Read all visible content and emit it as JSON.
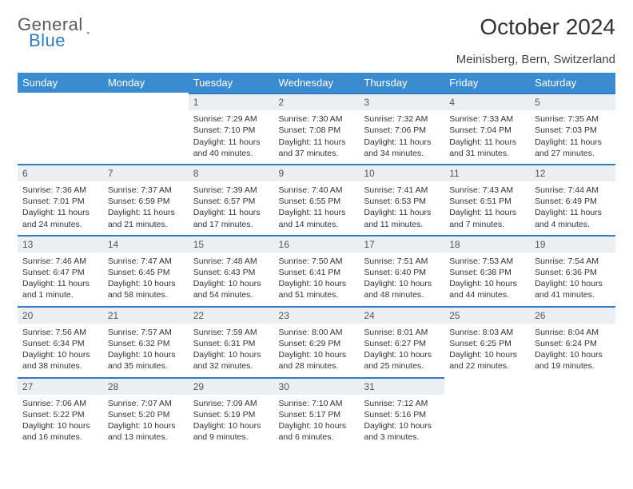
{
  "brand": {
    "name_part1": "General",
    "name_part2": "Blue"
  },
  "title": "October 2024",
  "location": "Meinisberg, Bern, Switzerland",
  "colors": {
    "header_bg": "#3a8bd0",
    "header_text": "#ffffff",
    "day_bar_bg": "#eceff1",
    "day_bar_border": "#2f7bc4",
    "text": "#333333",
    "logo_gray": "#5a5a5a",
    "logo_blue": "#2f7bc4",
    "background": "#ffffff"
  },
  "typography": {
    "title_fontsize": 28,
    "subtitle_fontsize": 15,
    "header_fontsize": 13,
    "cell_fontsize": 10.5
  },
  "day_headers": [
    "Sunday",
    "Monday",
    "Tuesday",
    "Wednesday",
    "Thursday",
    "Friday",
    "Saturday"
  ],
  "weeks": [
    [
      null,
      null,
      {
        "n": "1",
        "sr": "Sunrise: 7:29 AM",
        "ss": "Sunset: 7:10 PM",
        "dl": "Daylight: 11 hours and 40 minutes."
      },
      {
        "n": "2",
        "sr": "Sunrise: 7:30 AM",
        "ss": "Sunset: 7:08 PM",
        "dl": "Daylight: 11 hours and 37 minutes."
      },
      {
        "n": "3",
        "sr": "Sunrise: 7:32 AM",
        "ss": "Sunset: 7:06 PM",
        "dl": "Daylight: 11 hours and 34 minutes."
      },
      {
        "n": "4",
        "sr": "Sunrise: 7:33 AM",
        "ss": "Sunset: 7:04 PM",
        "dl": "Daylight: 11 hours and 31 minutes."
      },
      {
        "n": "5",
        "sr": "Sunrise: 7:35 AM",
        "ss": "Sunset: 7:03 PM",
        "dl": "Daylight: 11 hours and 27 minutes."
      }
    ],
    [
      {
        "n": "6",
        "sr": "Sunrise: 7:36 AM",
        "ss": "Sunset: 7:01 PM",
        "dl": "Daylight: 11 hours and 24 minutes."
      },
      {
        "n": "7",
        "sr": "Sunrise: 7:37 AM",
        "ss": "Sunset: 6:59 PM",
        "dl": "Daylight: 11 hours and 21 minutes."
      },
      {
        "n": "8",
        "sr": "Sunrise: 7:39 AM",
        "ss": "Sunset: 6:57 PM",
        "dl": "Daylight: 11 hours and 17 minutes."
      },
      {
        "n": "9",
        "sr": "Sunrise: 7:40 AM",
        "ss": "Sunset: 6:55 PM",
        "dl": "Daylight: 11 hours and 14 minutes."
      },
      {
        "n": "10",
        "sr": "Sunrise: 7:41 AM",
        "ss": "Sunset: 6:53 PM",
        "dl": "Daylight: 11 hours and 11 minutes."
      },
      {
        "n": "11",
        "sr": "Sunrise: 7:43 AM",
        "ss": "Sunset: 6:51 PM",
        "dl": "Daylight: 11 hours and 7 minutes."
      },
      {
        "n": "12",
        "sr": "Sunrise: 7:44 AM",
        "ss": "Sunset: 6:49 PM",
        "dl": "Daylight: 11 hours and 4 minutes."
      }
    ],
    [
      {
        "n": "13",
        "sr": "Sunrise: 7:46 AM",
        "ss": "Sunset: 6:47 PM",
        "dl": "Daylight: 11 hours and 1 minute."
      },
      {
        "n": "14",
        "sr": "Sunrise: 7:47 AM",
        "ss": "Sunset: 6:45 PM",
        "dl": "Daylight: 10 hours and 58 minutes."
      },
      {
        "n": "15",
        "sr": "Sunrise: 7:48 AM",
        "ss": "Sunset: 6:43 PM",
        "dl": "Daylight: 10 hours and 54 minutes."
      },
      {
        "n": "16",
        "sr": "Sunrise: 7:50 AM",
        "ss": "Sunset: 6:41 PM",
        "dl": "Daylight: 10 hours and 51 minutes."
      },
      {
        "n": "17",
        "sr": "Sunrise: 7:51 AM",
        "ss": "Sunset: 6:40 PM",
        "dl": "Daylight: 10 hours and 48 minutes."
      },
      {
        "n": "18",
        "sr": "Sunrise: 7:53 AM",
        "ss": "Sunset: 6:38 PM",
        "dl": "Daylight: 10 hours and 44 minutes."
      },
      {
        "n": "19",
        "sr": "Sunrise: 7:54 AM",
        "ss": "Sunset: 6:36 PM",
        "dl": "Daylight: 10 hours and 41 minutes."
      }
    ],
    [
      {
        "n": "20",
        "sr": "Sunrise: 7:56 AM",
        "ss": "Sunset: 6:34 PM",
        "dl": "Daylight: 10 hours and 38 minutes."
      },
      {
        "n": "21",
        "sr": "Sunrise: 7:57 AM",
        "ss": "Sunset: 6:32 PM",
        "dl": "Daylight: 10 hours and 35 minutes."
      },
      {
        "n": "22",
        "sr": "Sunrise: 7:59 AM",
        "ss": "Sunset: 6:31 PM",
        "dl": "Daylight: 10 hours and 32 minutes."
      },
      {
        "n": "23",
        "sr": "Sunrise: 8:00 AM",
        "ss": "Sunset: 6:29 PM",
        "dl": "Daylight: 10 hours and 28 minutes."
      },
      {
        "n": "24",
        "sr": "Sunrise: 8:01 AM",
        "ss": "Sunset: 6:27 PM",
        "dl": "Daylight: 10 hours and 25 minutes."
      },
      {
        "n": "25",
        "sr": "Sunrise: 8:03 AM",
        "ss": "Sunset: 6:25 PM",
        "dl": "Daylight: 10 hours and 22 minutes."
      },
      {
        "n": "26",
        "sr": "Sunrise: 8:04 AM",
        "ss": "Sunset: 6:24 PM",
        "dl": "Daylight: 10 hours and 19 minutes."
      }
    ],
    [
      {
        "n": "27",
        "sr": "Sunrise: 7:06 AM",
        "ss": "Sunset: 5:22 PM",
        "dl": "Daylight: 10 hours and 16 minutes."
      },
      {
        "n": "28",
        "sr": "Sunrise: 7:07 AM",
        "ss": "Sunset: 5:20 PM",
        "dl": "Daylight: 10 hours and 13 minutes."
      },
      {
        "n": "29",
        "sr": "Sunrise: 7:09 AM",
        "ss": "Sunset: 5:19 PM",
        "dl": "Daylight: 10 hours and 9 minutes."
      },
      {
        "n": "30",
        "sr": "Sunrise: 7:10 AM",
        "ss": "Sunset: 5:17 PM",
        "dl": "Daylight: 10 hours and 6 minutes."
      },
      {
        "n": "31",
        "sr": "Sunrise: 7:12 AM",
        "ss": "Sunset: 5:16 PM",
        "dl": "Daylight: 10 hours and 3 minutes."
      },
      null,
      null
    ]
  ]
}
